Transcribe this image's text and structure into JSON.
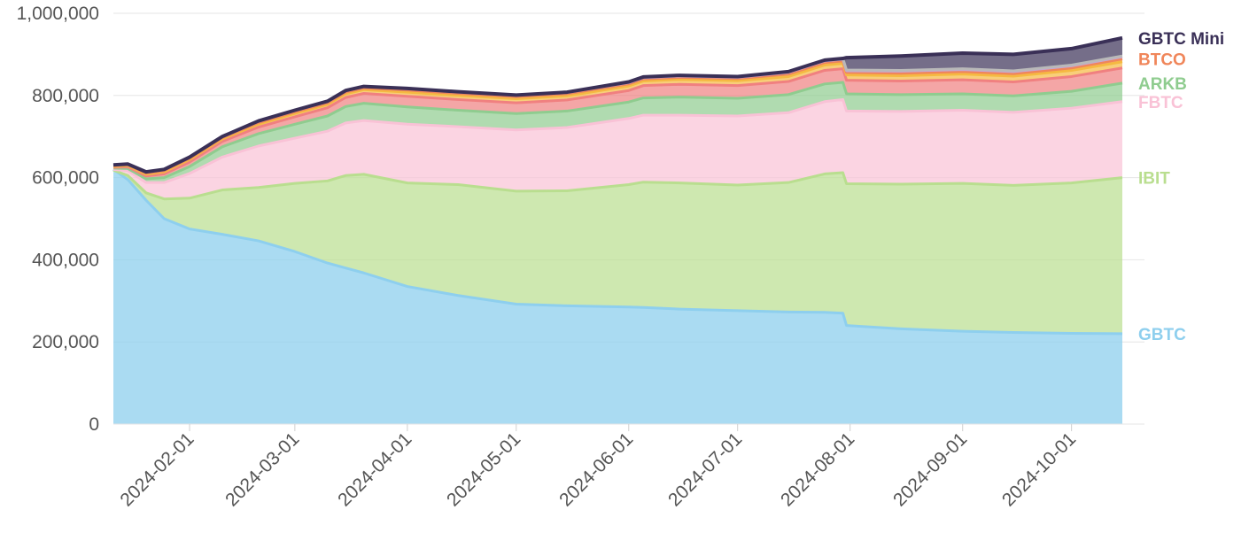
{
  "chart_data": {
    "type": "area",
    "stacked": true,
    "x": [
      "2024-01-11",
      "2024-01-15",
      "2024-01-20",
      "2024-01-25",
      "2024-02-01",
      "2024-02-10",
      "2024-02-20",
      "2024-03-01",
      "2024-03-10",
      "2024-03-15",
      "2024-03-20",
      "2024-04-01",
      "2024-04-15",
      "2024-05-01",
      "2024-05-15",
      "2024-06-01",
      "2024-06-05",
      "2024-06-15",
      "2024-07-01",
      "2024-07-15",
      "2024-07-25",
      "2024-07-30",
      "2024-07-31",
      "2024-08-15",
      "2024-09-01",
      "2024-09-15",
      "2024-10-01",
      "2024-10-15"
    ],
    "xticks": [
      "2024-02-01",
      "2024-03-01",
      "2024-04-01",
      "2024-05-01",
      "2024-06-01",
      "2024-07-01",
      "2024-08-01",
      "2024-09-01",
      "2024-10-01"
    ],
    "ylim": [
      0,
      1000000
    ],
    "yticks": [
      "0",
      "200,000",
      "400,000",
      "600,000",
      "800,000",
      "1,000,000"
    ],
    "grid": true,
    "series": [
      {
        "name": "GBTC",
        "color": "#8ecfee",
        "values": [
          620000,
          595000,
          545000,
          500000,
          475000,
          462000,
          446000,
          420000,
          392000,
          380000,
          368000,
          335000,
          313000,
          292000,
          288000,
          285000,
          284000,
          280000,
          276000,
          273000,
          272000,
          270000,
          240000,
          232000,
          226000,
          223000,
          221000,
          220000
        ]
      },
      {
        "name": "IBIT",
        "color": "#b9de8f",
        "values": [
          -2000,
          10000,
          18000,
          48000,
          75000,
          108000,
          130000,
          166000,
          200000,
          225000,
          240000,
          252000,
          270000,
          275000,
          280000,
          298000,
          305000,
          307000,
          306000,
          315000,
          337000,
          342000,
          345000,
          352000,
          360000,
          358000,
          366000,
          380000
        ]
      },
      {
        "name": "FBTC",
        "color": "#f9c2d6",
        "values": [
          2000,
          12000,
          25000,
          40000,
          60000,
          80000,
          101000,
          110000,
          121000,
          128000,
          131000,
          143000,
          141000,
          149000,
          154000,
          161000,
          163000,
          165000,
          168000,
          170000,
          176000,
          178000,
          177000,
          177000,
          178000,
          178000,
          182000,
          185000
        ]
      },
      {
        "name": "ARKB",
        "color": "#8fcc8f",
        "values": [
          3000,
          5000,
          9000,
          12000,
          17000,
          25000,
          30000,
          34000,
          37000,
          40000,
          42000,
          42000,
          40000,
          40000,
          40000,
          40000,
          42000,
          44000,
          43000,
          44000,
          43000,
          42000,
          42000,
          41000,
          40000,
          40000,
          41000,
          45000
        ]
      },
      {
        "name": "",
        "color": "#f08080",
        "values": [
          2000,
          4000,
          7000,
          9000,
          11000,
          13000,
          16000,
          18000,
          20000,
          22000,
          24000,
          26000,
          26000,
          26000,
          27000,
          28000,
          30000,
          31000,
          31000,
          32000,
          33000,
          33000,
          33000,
          33000,
          34000,
          34000,
          36000,
          37000
        ]
      },
      {
        "name": "",
        "color": "#f5b942",
        "values": [
          2000,
          3000,
          4000,
          5000,
          6000,
          6000,
          7000,
          8000,
          8000,
          9000,
          9000,
          10000,
          10000,
          10000,
          10000,
          11000,
          11000,
          12000,
          12000,
          12000,
          13000,
          13000,
          13000,
          13000,
          14000,
          14000,
          15000,
          15000
        ]
      },
      {
        "name": "BTCO",
        "color": "#f0865a",
        "values": [
          2000,
          2000,
          3000,
          3000,
          3000,
          3000,
          4000,
          4000,
          4000,
          4000,
          4000,
          5000,
          5000,
          5000,
          5000,
          5000,
          5000,
          5000,
          5000,
          6000,
          6000,
          6000,
          6000,
          6000,
          6000,
          6000,
          6000,
          7000
        ]
      },
      {
        "name": "",
        "color": "#c9a3d6",
        "values": [
          1000,
          1000,
          2000,
          2000,
          2000,
          2000,
          3000,
          3000,
          3000,
          3000,
          3000,
          3000,
          3000,
          3000,
          3000,
          3000,
          3000,
          3000,
          3000,
          4000,
          4000,
          4000,
          4000,
          5000,
          5000,
          5000,
          5000,
          5000
        ]
      },
      {
        "name": "",
        "color": "#b9b9b9",
        "values": [
          1000,
          1000,
          1000,
          1000,
          1000,
          1000,
          1000,
          1000,
          1000,
          1000,
          1000,
          1000,
          1000,
          1000,
          1000,
          2000,
          2000,
          2000,
          2000,
          2000,
          2000,
          2000,
          2000,
          2000,
          2000,
          2000,
          2000,
          2000
        ]
      },
      {
        "name": "GBTC Mini",
        "color": "#3a3057",
        "values": [
          0,
          0,
          0,
          0,
          0,
          0,
          0,
          0,
          0,
          0,
          0,
          0,
          0,
          0,
          0,
          0,
          0,
          0,
          0,
          0,
          0,
          0,
          30000,
          35000,
          38000,
          40000,
          40000,
          44000
        ]
      }
    ]
  }
}
